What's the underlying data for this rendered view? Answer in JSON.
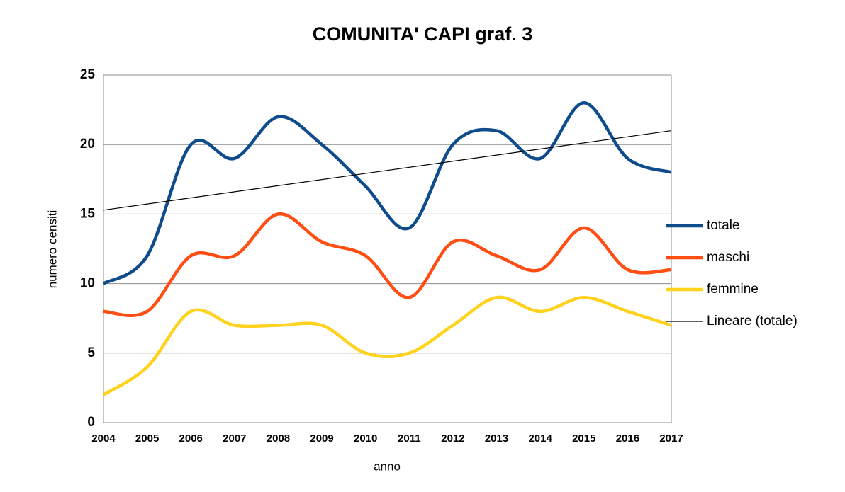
{
  "chart_data": {
    "type": "line",
    "title": "COMUNITA' CAPI graf. 3",
    "x_label": "anno",
    "y_label": "numero censiti",
    "categories": [
      "2004",
      "2005",
      "2006",
      "2007",
      "2008",
      "2009",
      "2010",
      "2011",
      "2012",
      "2013",
      "2014",
      "2015",
      "2016",
      "2017"
    ],
    "series": [
      {
        "name": "totale",
        "color": "#0f4c8c",
        "values": [
          10,
          12,
          20,
          19,
          22,
          20,
          17,
          14,
          20,
          21,
          19,
          23,
          19,
          18
        ]
      },
      {
        "name": "maschi",
        "color": "#ff4e14",
        "values": [
          8,
          8,
          12,
          12,
          15,
          13,
          12,
          9,
          13,
          12,
          11,
          14,
          11,
          11
        ]
      },
      {
        "name": "femmine",
        "color": "#ffd21e",
        "values": [
          2,
          4,
          8,
          7,
          7,
          7,
          5,
          5,
          7,
          9,
          8,
          9,
          8,
          7
        ]
      }
    ],
    "trendline": {
      "name": "Lineare (totale)",
      "series": 0,
      "color": "#000000"
    },
    "ylim": [
      0,
      25
    ],
    "yticks": [
      0,
      5,
      10,
      15,
      20,
      25
    ],
    "grid": true,
    "smooth": true,
    "legend": "right"
  }
}
